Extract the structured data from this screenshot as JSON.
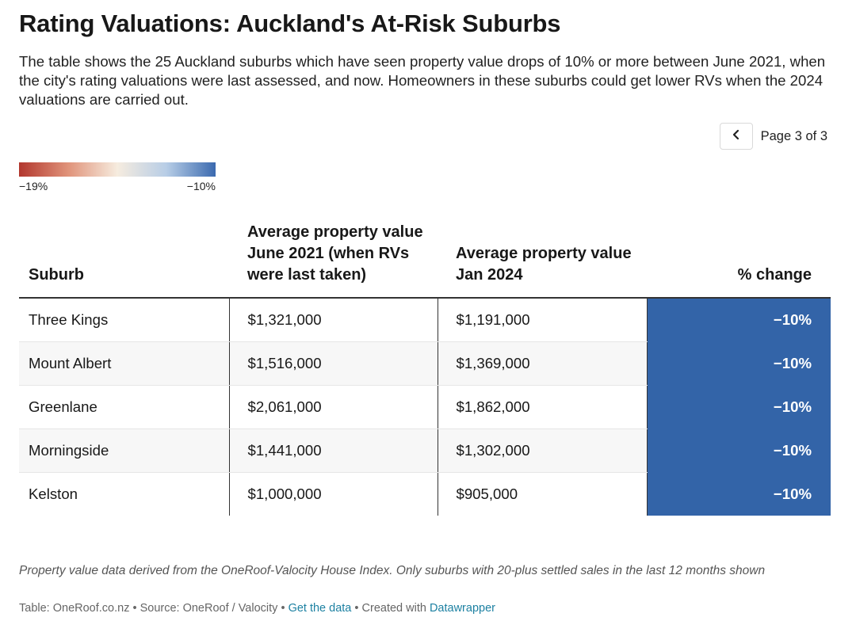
{
  "title": "Rating Valuations: Auckland's At-Risk Suburbs",
  "description": "The table shows the 25 Auckland suburbs which have seen property value drops of 10% or more between June 2021, when the city's rating valuations were last assessed, and now. Homeowners in these suburbs could get lower RVs when the 2024 valuations are carried out.",
  "pagination": {
    "label": "Page 3 of 3",
    "prev_icon": "chevron-left-icon"
  },
  "legend": {
    "min_label": "−19%",
    "max_label": "−10%",
    "colors": [
      "#b2372e",
      "#f6ecdf",
      "#3b6aaf"
    ]
  },
  "chart_data": {
    "type": "table",
    "columns": [
      "Suburb",
      "Average property value June 2021 (when RVs were last taken)",
      "Average property value Jan 2024",
      "% change"
    ],
    "rows": [
      {
        "suburb": "Three Kings",
        "value_2021": "$1,321,000",
        "value_2024": "$1,191,000",
        "change": "−10%"
      },
      {
        "suburb": "Mount Albert",
        "value_2021": "$1,516,000",
        "value_2024": "$1,369,000",
        "change": "−10%"
      },
      {
        "suburb": "Greenlane",
        "value_2021": "$2,061,000",
        "value_2024": "$1,862,000",
        "change": "−10%"
      },
      {
        "suburb": "Morningside",
        "value_2021": "$1,441,000",
        "value_2024": "$1,302,000",
        "change": "−10%"
      },
      {
        "suburb": "Kelston",
        "value_2021": "$1,000,000",
        "value_2024": "$905,000",
        "change": "−10%"
      }
    ],
    "change_cell_color": "#3364a8"
  },
  "notes": "Property value data derived from the OneRoof-Valocity House Index. Only suburbs with 20-plus settled sales in the last 12 months shown",
  "footer": {
    "table_credit": "Table: OneRoof.co.nz",
    "sep1": " • ",
    "source": "Source: OneRoof / Valocity",
    "sep2": " • ",
    "get_data": "Get the data",
    "sep3": " • ",
    "created_with": "Created with ",
    "datawrapper": "Datawrapper"
  }
}
